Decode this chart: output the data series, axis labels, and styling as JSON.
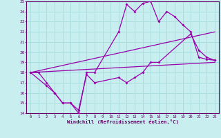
{
  "xlabel": "Windchill (Refroidissement éolien,°C)",
  "bg_color": "#c8eef0",
  "grid_color": "#aadddd",
  "line_color": "#9900aa",
  "xlim": [
    -0.5,
    23.5
  ],
  "ylim": [
    14,
    25
  ],
  "xticks": [
    0,
    1,
    2,
    3,
    4,
    5,
    6,
    7,
    8,
    9,
    10,
    11,
    12,
    13,
    14,
    15,
    16,
    17,
    18,
    19,
    20,
    21,
    22,
    23
  ],
  "yticks": [
    14,
    15,
    16,
    17,
    18,
    19,
    20,
    21,
    22,
    23,
    24,
    25
  ],
  "line1_x": [
    0,
    1,
    2,
    3,
    4,
    5,
    6,
    7,
    8,
    11,
    12,
    13,
    14,
    15,
    16,
    17,
    18,
    19,
    20,
    21,
    22,
    23
  ],
  "line1_y": [
    18,
    18,
    17,
    16,
    15,
    15,
    14,
    18,
    18,
    22,
    24.7,
    24,
    24.8,
    25,
    23,
    24,
    23.5,
    22.7,
    22,
    19.5,
    19.3,
    19.2
  ],
  "line2_x": [
    0,
    2,
    3,
    4,
    5,
    6,
    7,
    8,
    11,
    12,
    13,
    14,
    15,
    16,
    20,
    21,
    22,
    23
  ],
  "line2_y": [
    18,
    16.7,
    16,
    15,
    15,
    14.3,
    17.8,
    17,
    17.5,
    17,
    17.5,
    18,
    19,
    19,
    21.8,
    20.2,
    19.5,
    19.2
  ],
  "line3_x": [
    0,
    23
  ],
  "line3_y": [
    18,
    19
  ],
  "line4_x": [
    0,
    23
  ],
  "line4_y": [
    18,
    22
  ]
}
